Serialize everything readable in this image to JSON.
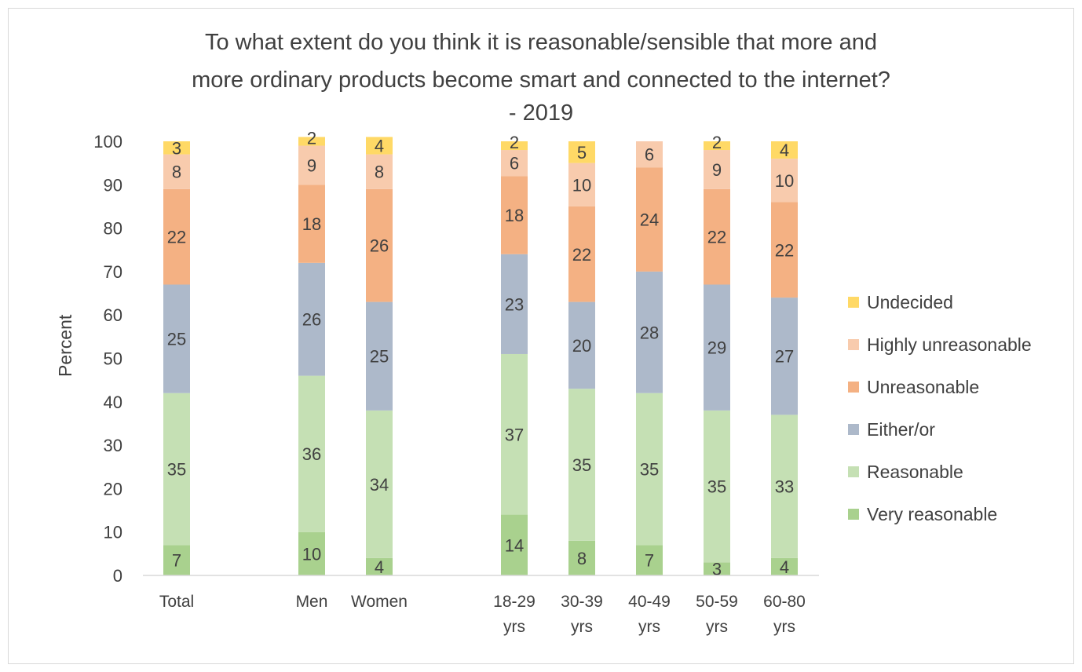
{
  "chart_data": {
    "type": "bar",
    "stacked": true,
    "title_lines": [
      "To what extent do you think it is reasonable/sensible that more and",
      "more ordinary products become smart and connected to the internet?",
      "- 2019"
    ],
    "ylabel": "Percent",
    "ylim": [
      0,
      100
    ],
    "yticks": [
      0,
      10,
      20,
      30,
      40,
      50,
      60,
      70,
      80,
      90,
      100
    ],
    "grid": false,
    "legend_position": "right",
    "categories": [
      {
        "line1": "Total",
        "line2": ""
      },
      {
        "line1": "Men",
        "line2": ""
      },
      {
        "line1": "Women",
        "line2": ""
      },
      {
        "line1": "18-29",
        "line2": "yrs"
      },
      {
        "line1": "30-39",
        "line2": "yrs"
      },
      {
        "line1": "40-49",
        "line2": "yrs"
      },
      {
        "line1": "50-59",
        "line2": "yrs"
      },
      {
        "line1": "60-80",
        "line2": "yrs"
      }
    ],
    "series": [
      {
        "name": "Very reasonable",
        "color": "#a9d18e",
        "values": [
          7,
          10,
          4,
          14,
          8,
          7,
          3,
          4
        ]
      },
      {
        "name": "Reasonable",
        "color": "#c5e0b4",
        "values": [
          35,
          36,
          34,
          37,
          35,
          35,
          35,
          33
        ]
      },
      {
        "name": "Either/or",
        "color": "#adb9ca",
        "values": [
          25,
          26,
          25,
          23,
          20,
          28,
          29,
          27
        ]
      },
      {
        "name": "Unreasonable",
        "color": "#f4b183",
        "values": [
          22,
          18,
          26,
          18,
          22,
          24,
          22,
          22
        ]
      },
      {
        "name": "Highly unreasonable",
        "color": "#f8cbad",
        "values": [
          8,
          9,
          8,
          6,
          10,
          6,
          9,
          10
        ]
      },
      {
        "name": "Undecided",
        "color": "#ffd966",
        "values": [
          3,
          2,
          4,
          2,
          5,
          0,
          2,
          4
        ]
      }
    ],
    "data_labels_shown": [
      [
        true,
        true,
        true,
        true,
        true,
        true,
        true,
        true
      ],
      [
        true,
        true,
        true,
        true,
        true,
        true,
        true,
        true
      ],
      [
        true,
        true,
        true,
        true,
        true,
        true,
        true,
        true
      ],
      [
        true,
        true,
        true,
        true,
        true,
        true,
        true,
        true
      ],
      [
        true,
        true,
        true,
        true,
        true,
        true,
        true,
        true
      ],
      [
        true,
        true,
        true,
        true,
        true,
        false,
        true,
        true
      ]
    ]
  }
}
